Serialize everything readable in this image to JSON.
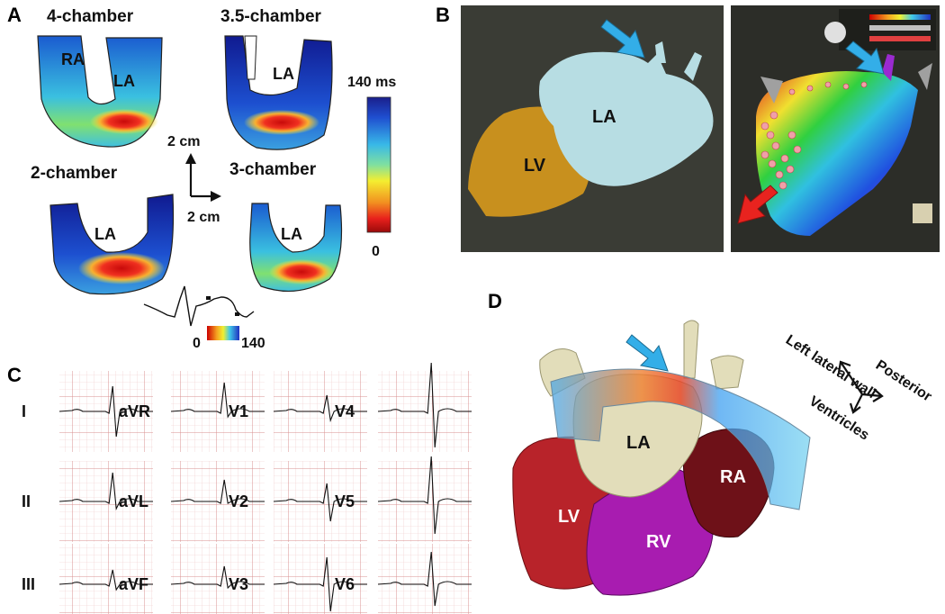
{
  "panelA": {
    "letter": "A",
    "views": [
      {
        "title": "4-chamber",
        "labels": [
          "RA",
          "LA"
        ]
      },
      {
        "title": "3.5-chamber",
        "labels": [
          "LA"
        ]
      },
      {
        "title": "2-chamber",
        "labels": [
          "LA"
        ]
      },
      {
        "title": "3-chamber",
        "labels": [
          "LA"
        ]
      }
    ],
    "scale_vertical": "2 cm",
    "scale_horizontal": "2 cm",
    "colorbar_max": "140 ms",
    "colorbar_min": "0",
    "ecg_scale_min": "0",
    "ecg_scale_max": "140"
  },
  "panelB": {
    "letter": "B",
    "left_labels": [
      "LA",
      "LV"
    ]
  },
  "panelC": {
    "letter": "C",
    "leads": [
      "I",
      "aVR",
      "V1",
      "V4",
      "II",
      "aVL",
      "V2",
      "V5",
      "III",
      "aVF",
      "V3",
      "V6"
    ]
  },
  "panelD": {
    "letter": "D",
    "labels": [
      "LA",
      "LV",
      "RV",
      "RA"
    ],
    "orientation": [
      "Left lateral wall",
      "Posterior",
      "Ventricles"
    ]
  },
  "colors": {
    "la_model": "#b7dde3",
    "lv_model": "#c8901e",
    "lv_red": "#b8232a",
    "rv_magenta": "#a81cb0",
    "ra_dark": "#6e1118",
    "atrium_beige": "#e2ddba",
    "arrow_blue": "#33aee8",
    "arrow_red": "#e8231f"
  }
}
